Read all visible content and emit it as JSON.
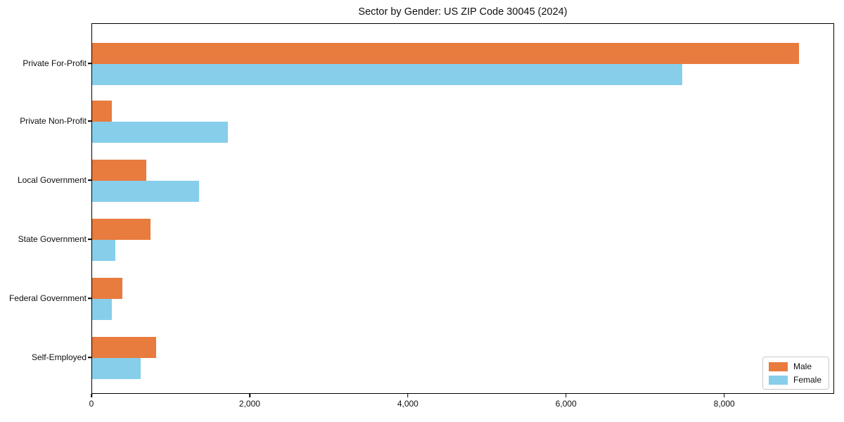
{
  "chart_data": {
    "type": "bar",
    "orientation": "horizontal",
    "title": "Sector by Gender: US ZIP Code 30045 (2024)",
    "categories": [
      "Private For-Profit",
      "Private Non-Profit",
      "Local Government",
      "State Government",
      "Federal Government",
      "Self-Employed"
    ],
    "series": [
      {
        "name": "Male",
        "color": "#e87b3e",
        "values": [
          8940,
          250,
          685,
          740,
          380,
          810
        ]
      },
      {
        "name": "Female",
        "color": "#87ceeb",
        "values": [
          7460,
          1715,
          1350,
          295,
          250,
          615
        ]
      }
    ],
    "xlabel": "",
    "ylabel": "",
    "xlim": [
      0,
      9390
    ],
    "x_ticks": [
      0,
      2000,
      4000,
      6000,
      8000
    ],
    "x_tick_labels": [
      "0",
      "2,000",
      "4,000",
      "6,000",
      "8,000"
    ],
    "grid": false,
    "legend": {
      "position": "lower right",
      "entries": [
        "Male",
        "Female"
      ]
    }
  }
}
